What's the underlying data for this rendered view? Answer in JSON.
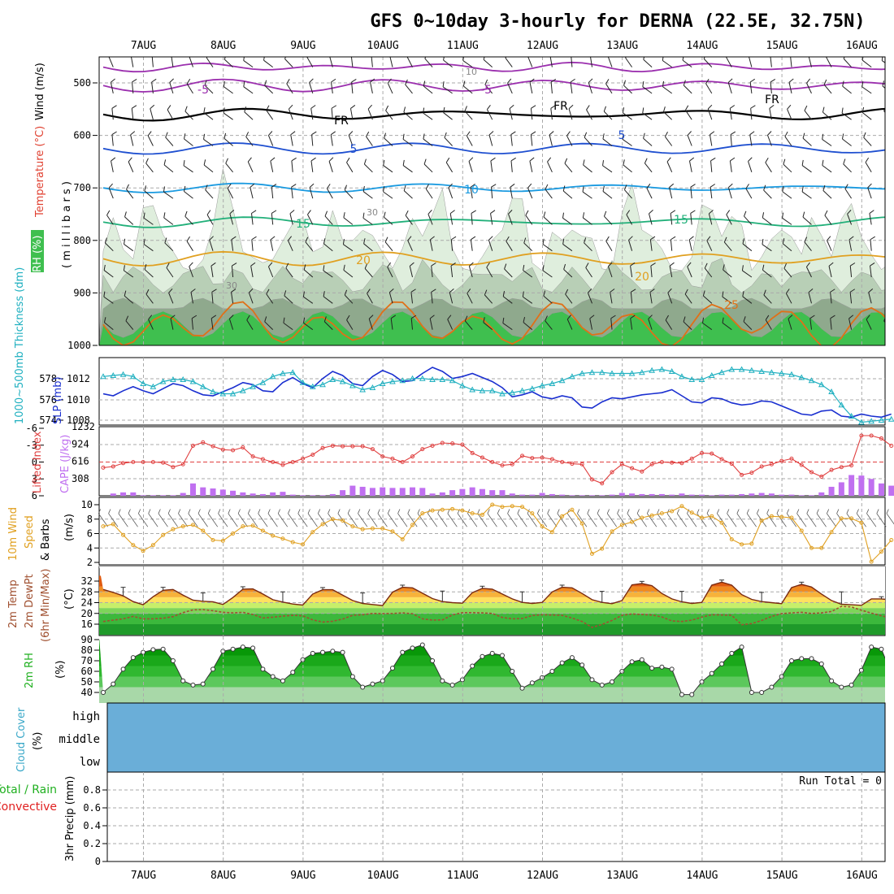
{
  "title": "GFS 0~10day 3-hourly for DERNA (22.5E, 32.75N)",
  "dates": [
    "7AUG",
    "8AUG",
    "9AUG",
    "10AUG",
    "11AUG",
    "12AUG",
    "13AUG",
    "14AUG",
    "15AUG",
    "16AUG"
  ],
  "colors": {
    "grid": "#aaaaaa",
    "rh_light": "#dfeedd",
    "rh_mid": "#b8cfb6",
    "rh_dark": "#8fa98d",
    "rh_bright": "#3fbf4f",
    "temp_m5": "#9b2fae",
    "temp_fr": "#000000",
    "temp_5": "#1e4fd0",
    "temp_10": "#1a9ae0",
    "temp_15": "#22b07a",
    "temp_20": "#e0a020",
    "temp_25": "#e07018",
    "temp_30": "#d0187a",
    "slp": "#1a2fd0",
    "thickness": "#20b0c0",
    "lifted": "#e04040",
    "cape": "#c070f0",
    "wind10": "#e0a020",
    "temp2m": "#e06010",
    "dewpt": "#a05030",
    "rh2m": "#20b020",
    "cloud": "#6aaed8",
    "precip_total": "#20b020",
    "precip_conv": "#e02020"
  },
  "panels": {
    "upper": {
      "ylabels": [
        "500",
        "600",
        "700",
        "800",
        "900",
        "1000"
      ],
      "axis_title_rh": "RH (%)",
      "axis_title_temp": "Temperature (°C)",
      "axis_title_wind": "Wind (m/s)",
      "axis_title_mb": "( m i l l i b a r s )",
      "contour_labels": {
        "m5": "-5",
        "fr": "FR",
        "p5": "5",
        "p10": "10",
        "p15": "15",
        "p20": "20",
        "p25": "25",
        "rh10": "10",
        "rh30": "30",
        "rh50": "50"
      }
    },
    "slp": {
      "title_slp": "SLP (mb)",
      "title_thick": "1000~500mb Thickness (dm)",
      "ylabels_left": [
        "578",
        "576",
        "574"
      ],
      "ylabels_right": [
        "1012",
        "1010",
        "1008"
      ]
    },
    "cape": {
      "title_li": "Lifted Index",
      "title_cape": "CAPE (J/kg)",
      "ylabels_left": [
        "-6",
        "-3",
        "0",
        "3",
        "6"
      ],
      "ylabels_right": [
        "1232",
        "924",
        "616",
        "308"
      ]
    },
    "wind": {
      "title1": "10m Wind",
      "title2": "Speed",
      "title3": "& Barbs",
      "unit": "(m/s)",
      "ylabels": [
        "10",
        "8",
        "6",
        "4",
        "2"
      ]
    },
    "temp": {
      "title1": "2m Temp",
      "title2": "2m DewPt",
      "title3": "(6hr Min/Max)",
      "unit": "(°C)",
      "ylabels": [
        "32",
        "28",
        "24",
        "20",
        "16"
      ]
    },
    "rh": {
      "title": "2m RH",
      "unit": "(%)",
      "ylabels": [
        "90",
        "80",
        "70",
        "60",
        "50",
        "40"
      ]
    },
    "cloud": {
      "title": "Cloud Cover",
      "unit": "(%)",
      "levels": [
        "high",
        "middle",
        "low"
      ]
    },
    "precip": {
      "title_total": "Total / Rain",
      "title_conv": "Convective",
      "title_axis": "3hr Precip (mm)",
      "run_total": "Run Total = 0",
      "ylabels": [
        "0.8",
        "0.6",
        "0.4",
        "0.2",
        "0"
      ]
    }
  },
  "chart_data": {
    "type": "line",
    "times": [
      "07AUG00",
      "07AUG03",
      "07AUG06",
      "07AUG09",
      "07AUG12",
      "07AUG15",
      "07AUG18",
      "07AUG21",
      "08AUG00",
      "08AUG03",
      "08AUG06",
      "08AUG09",
      "08AUG12",
      "08AUG15",
      "08AUG18",
      "08AUG21",
      "09AUG00",
      "09AUG03",
      "09AUG06",
      "09AUG09",
      "09AUG12",
      "09AUG15",
      "09AUG18",
      "09AUG21",
      "10AUG00",
      "10AUG03",
      "10AUG06",
      "10AUG09",
      "10AUG12",
      "10AUG15",
      "10AUG18",
      "10AUG21",
      "11AUG00",
      "11AUG03",
      "11AUG06",
      "11AUG09",
      "11AUG12",
      "11AUG15",
      "11AUG18",
      "11AUG21",
      "12AUG00",
      "12AUG03",
      "12AUG06",
      "12AUG09",
      "12AUG12",
      "12AUG15",
      "12AUG18",
      "12AUG21",
      "13AUG00",
      "13AUG03",
      "13AUG06",
      "13AUG09",
      "13AUG12",
      "13AUG15",
      "13AUG18",
      "13AUG21",
      "14AUG00",
      "14AUG03",
      "14AUG06",
      "14AUG09",
      "14AUG12",
      "14AUG15",
      "14AUG18",
      "14AUG21",
      "15AUG00",
      "15AUG03",
      "15AUG06",
      "15AUG09",
      "15AUG12",
      "15AUG15",
      "15AUG18",
      "15AUG21",
      "16AUG00",
      "16AUG03",
      "16AUG06",
      "16AUG09",
      "16AUG12",
      "16AUG15",
      "16AUG18",
      "16AUG21"
    ],
    "series": [
      {
        "name": "SLP (mb)",
        "values": [
          1010.6,
          1010.4,
          1010.9,
          1011.3,
          1010.9,
          1010.6,
          1011.1,
          1011.6,
          1011.4,
          1010.9,
          1010.5,
          1010.4,
          1010.8,
          1011.2,
          1011.7,
          1011.5,
          1010.9,
          1010.8,
          1011.7,
          1012.2,
          1011.6,
          1011.2,
          1012.1,
          1012.8,
          1012.4,
          1011.6,
          1011.4,
          1012.3,
          1012.9,
          1012.5,
          1011.8,
          1011.9,
          1012.6,
          1013.2,
          1012.8,
          1012.1,
          1012.3,
          1012.6,
          1012.2,
          1011.8,
          1011.2,
          1010.3,
          1010.5,
          1010.8,
          1010.3,
          1010.1,
          1010.4,
          1010.2,
          1009.3,
          1009.2,
          1009.8,
          1010.2,
          1010.1,
          1010.3,
          1010.5,
          1010.6,
          1010.7,
          1011.0,
          1010.4,
          1009.8,
          1009.7,
          1010.2,
          1010.1,
          1009.7,
          1009.5,
          1009.6,
          1009.9,
          1009.8,
          1009.4,
          1009.0,
          1008.6,
          1008.5,
          1008.9,
          1009.0,
          1008.4,
          1008.3,
          1008.6,
          1008.4,
          1008.3,
          1008.6
        ]
      },
      {
        "name": "1000-500mb Thickness (dm)",
        "values": [
          578.3,
          578.4,
          578.5,
          578.3,
          577.6,
          577.3,
          577.8,
          578.0,
          578.0,
          577.8,
          577.3,
          576.8,
          576.6,
          576.6,
          576.9,
          577.3,
          577.7,
          578.3,
          578.6,
          578.7,
          577.7,
          577.3,
          577.5,
          578.0,
          577.8,
          577.4,
          577.0,
          577.2,
          577.6,
          577.8,
          577.9,
          578.1,
          578.1,
          578.0,
          578.0,
          577.9,
          577.4,
          577.0,
          576.9,
          576.9,
          576.6,
          576.7,
          576.9,
          577.1,
          577.4,
          577.6,
          577.9,
          578.3,
          578.6,
          578.7,
          578.7,
          578.6,
          578.6,
          578.6,
          578.7,
          578.9,
          579.0,
          578.8,
          578.3,
          578.0,
          578.0,
          578.4,
          578.7,
          579.0,
          579.0,
          578.9,
          578.8,
          578.7,
          578.6,
          578.5,
          578.2,
          577.9,
          577.5,
          576.8,
          575.5,
          574.4,
          573.8,
          573.9,
          574.0,
          574.1
        ]
      },
      {
        "name": "Lifted Index",
        "values": [
          1.0,
          0.8,
          0.2,
          0.0,
          0.0,
          0.0,
          0.1,
          0.9,
          0.4,
          -2.9,
          -3.5,
          -2.8,
          -2.2,
          -2.1,
          -2.6,
          -1.0,
          -0.5,
          0.0,
          0.5,
          0.0,
          -0.6,
          -1.3,
          -2.5,
          -2.9,
          -2.8,
          -2.8,
          -2.8,
          -2.3,
          -1.0,
          -0.6,
          0.0,
          -1.0,
          -2.3,
          -2.9,
          -3.4,
          -3.3,
          -3.1,
          -1.6,
          -0.8,
          0.0,
          0.6,
          0.4,
          -1.1,
          -0.7,
          -0.8,
          -0.5,
          0.0,
          0.3,
          0.4,
          3.1,
          3.8,
          1.8,
          0.4,
          1.1,
          1.7,
          0.4,
          0.0,
          0.1,
          0.2,
          -0.6,
          -1.6,
          -1.5,
          -0.5,
          0.3,
          2.3,
          1.9,
          0.8,
          0.4,
          -0.2,
          -0.6,
          0.5,
          1.8,
          2.6,
          1.4,
          0.9,
          0.6,
          -4.7,
          -4.7,
          -4.2,
          -2.9
        ]
      },
      {
        "name": "CAPE (J/kg)",
        "values": [
          0,
          40,
          60,
          60,
          10,
          10,
          10,
          10,
          50,
          220,
          150,
          130,
          110,
          90,
          60,
          40,
          30,
          60,
          70,
          20,
          10,
          10,
          10,
          30,
          100,
          180,
          160,
          140,
          150,
          140,
          140,
          150,
          140,
          40,
          60,
          100,
          120,
          150,
          120,
          100,
          100,
          40,
          20,
          20,
          50,
          30,
          20,
          10,
          10,
          10,
          10,
          20,
          50,
          40,
          30,
          30,
          30,
          20,
          40,
          20,
          20,
          10,
          20,
          20,
          30,
          40,
          50,
          40,
          20,
          20,
          10,
          10,
          60,
          160,
          240,
          370,
          360,
          300,
          220,
          180
        ]
      },
      {
        "name": "10m Wind Speed (m/s)",
        "values": [
          7.0,
          7.3,
          5.8,
          4.4,
          3.6,
          4.4,
          5.8,
          6.6,
          7.0,
          7.2,
          6.4,
          5.1,
          5.0,
          6.0,
          7.0,
          7.1,
          6.4,
          5.7,
          5.3,
          4.8,
          4.5,
          6.2,
          7.3,
          8.0,
          7.8,
          7.0,
          6.6,
          6.7,
          6.7,
          6.3,
          5.2,
          7.2,
          8.8,
          9.2,
          9.3,
          9.4,
          9.2,
          8.8,
          8.6,
          10.0,
          9.7,
          9.8,
          9.7,
          8.8,
          7.0,
          6.2,
          8.4,
          9.3,
          7.4,
          3.2,
          3.9,
          6.3,
          7.2,
          7.6,
          8.2,
          8.5,
          8.8,
          9.1,
          9.8,
          8.9,
          8.2,
          8.4,
          7.5,
          5.2,
          4.5,
          4.6,
          7.8,
          8.4,
          8.3,
          8.2,
          6.4,
          4.0,
          4.0,
          6.2,
          8.1,
          8.1,
          7.5,
          2.1,
          3.5,
          5.1
        ]
      },
      {
        "name": "2m Temp (°C)",
        "values": [
          28.9,
          27.8,
          26.5,
          24.4,
          23.2,
          26.2,
          28.6,
          28.9,
          26.8,
          24.9,
          24.5,
          24.3,
          23.3,
          25.9,
          29.0,
          29.1,
          27.2,
          25.1,
          24.2,
          23.5,
          23.1,
          27.2,
          28.8,
          28.8,
          26.8,
          24.8,
          23.7,
          23.3,
          22.9,
          27.9,
          29.7,
          29.5,
          27.5,
          25.5,
          24.4,
          24.0,
          23.8,
          27.7,
          29.3,
          29.0,
          27.2,
          25.4,
          24.1,
          23.7,
          24.1,
          28.0,
          29.7,
          29.5,
          27.4,
          25.1,
          24.1,
          23.6,
          24.8,
          30.6,
          31.1,
          30.3,
          27.4,
          25.4,
          24.3,
          23.7,
          24.1,
          30.5,
          31.6,
          30.5,
          27.0,
          25.2,
          24.4,
          24.0,
          23.6,
          29.6,
          30.8,
          29.8,
          27.2,
          24.8,
          23.4,
          23.2,
          23.0,
          25.4,
          25.4,
          25.0
        ]
      },
      {
        "name": "2m DewPt (°C)",
        "values": [
          17.0,
          17.5,
          18.0,
          18.9,
          18.0,
          18.0,
          18.2,
          18.8,
          20.3,
          21.3,
          21.4,
          21.0,
          20.4,
          20.2,
          20.4,
          19.6,
          18.3,
          18.6,
          19.0,
          19.3,
          19.1,
          17.6,
          16.8,
          17.1,
          17.9,
          19.3,
          19.5,
          20.0,
          19.9,
          20.0,
          20.2,
          19.9,
          18.0,
          17.5,
          17.6,
          19.4,
          20.3,
          20.3,
          20.2,
          20.0,
          18.5,
          18.0,
          18.1,
          19.2,
          19.5,
          19.4,
          19.3,
          18.3,
          17.0,
          14.8,
          15.9,
          17.4,
          19.3,
          19.8,
          19.6,
          19.4,
          18.7,
          17.2,
          17.0,
          17.5,
          18.6,
          19.5,
          19.4,
          19.3,
          15.8,
          16.2,
          17.4,
          18.9,
          19.9,
          20.2,
          20.4,
          20.0,
          20.2,
          20.7,
          22.6,
          22.4,
          21.2,
          20.1,
          19.1,
          18.3
        ]
      },
      {
        "name": "2m RH (%)",
        "values": [
          40.0,
          48.0,
          62.0,
          73.0,
          78.0,
          80.5,
          81.0,
          70.0,
          51.0,
          47.0,
          48.0,
          62.0,
          79.0,
          81.0,
          83.0,
          82.0,
          62.0,
          55.0,
          51.0,
          59.0,
          71.0,
          77.0,
          78.0,
          79.0,
          78.0,
          55.0,
          45.0,
          48.0,
          51.0,
          63.0,
          78.0,
          82.0,
          85.0,
          70.0,
          51.0,
          47.0,
          52.0,
          65.0,
          74.0,
          77.0,
          75.0,
          60.0,
          44.0,
          49.0,
          54.0,
          60.0,
          68.0,
          73.0,
          66.0,
          52.0,
          47.0,
          50.0,
          60.0,
          69.0,
          71.0,
          63.0,
          64.0,
          62.0,
          38.0,
          38.0,
          50.0,
          58.0,
          67.0,
          77.0,
          83.0,
          40.0,
          40.0,
          45.0,
          55.0,
          70.0,
          72.0,
          72.0,
          67.0,
          51.0,
          45.0,
          47.0,
          61.0,
          83.0,
          81.0,
          58.0
        ]
      },
      {
        "name": "3hr Precip (mm)",
        "values": [
          0,
          0,
          0,
          0,
          0,
          0,
          0,
          0,
          0,
          0,
          0,
          0,
          0,
          0,
          0,
          0,
          0,
          0,
          0,
          0,
          0,
          0,
          0,
          0,
          0,
          0,
          0,
          0,
          0,
          0,
          0,
          0,
          0,
          0,
          0,
          0,
          0,
          0,
          0,
          0,
          0,
          0,
          0,
          0,
          0,
          0,
          0,
          0,
          0,
          0,
          0,
          0,
          0,
          0,
          0,
          0,
          0,
          0,
          0,
          0,
          0,
          0,
          0,
          0,
          0,
          0,
          0,
          0,
          0,
          0,
          0,
          0,
          0,
          0,
          0,
          0,
          0,
          0,
          0,
          0
        ]
      }
    ],
    "cloud_cover": {
      "high": 100,
      "middle": 100,
      "low": 100
    },
    "ylims": {
      "upper": [
        1000,
        450
      ],
      "slp": [
        1007.5,
        1014
      ],
      "thickness": [
        573.5,
        580
      ],
      "lifted": [
        6,
        -6
      ],
      "cape": [
        0,
        1232
      ],
      "wind": [
        2,
        11
      ],
      "temp": [
        12,
        34
      ],
      "rh": [
        30,
        90
      ],
      "precip": [
        0,
        1
      ]
    },
    "xlabel": "",
    "ylabel": ""
  }
}
